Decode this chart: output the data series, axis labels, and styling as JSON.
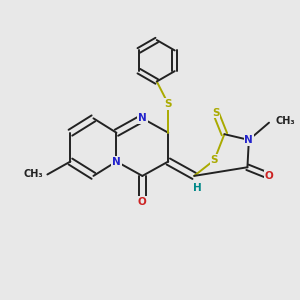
{
  "bg_color": "#e8e8e8",
  "bond_color": "#222222",
  "N_color": "#2222cc",
  "O_color": "#cc2222",
  "S_color": "#aaaa00",
  "H_color": "#008888",
  "lw": 1.4,
  "dbo": 0.13,
  "fs": 7.5,
  "xlim": [
    0,
    10
  ],
  "ylim": [
    0,
    10
  ]
}
